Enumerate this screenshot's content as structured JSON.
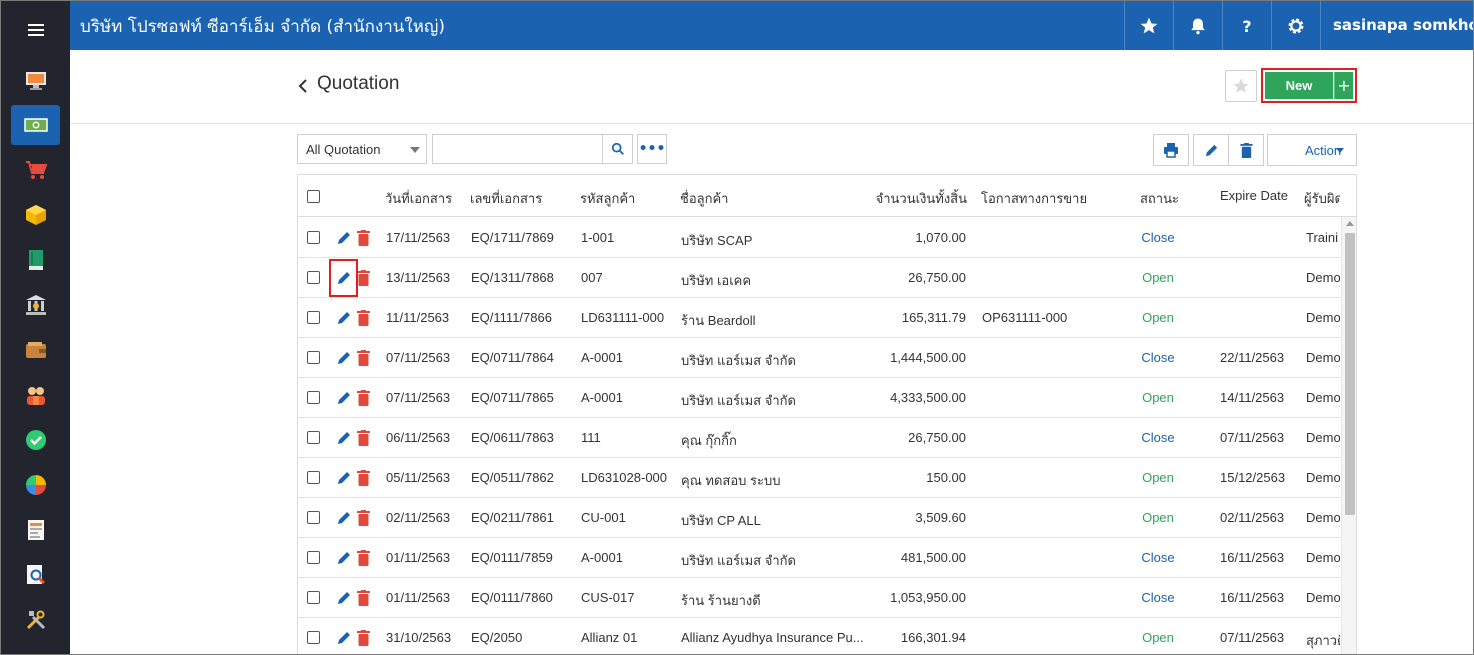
{
  "header": {
    "company": "บริษัท โปรซอฟท์ ซีอาร์เอ็ม จำกัด (สำนักงานใหญ่)",
    "user": "sasinapa somkho..."
  },
  "sidebar": {
    "icons": [
      "dashboard-icon",
      "money-icon",
      "cart-icon",
      "box-icon",
      "book-icon",
      "bank-icon",
      "wallet-icon",
      "people-icon",
      "check-icon",
      "pie-chart-icon",
      "report-icon",
      "search-report-icon",
      "tools-icon"
    ],
    "active_index": 1
  },
  "page": {
    "title": "Quotation",
    "new_label": "New",
    "new_plus": "+",
    "filter_value": "All Quotation",
    "more_label": "•••",
    "action_label": "Action"
  },
  "table": {
    "headers": {
      "date": "วันที่เอกสาร",
      "docno": "เลขที่เอกสาร",
      "custcode": "รหัสลูกค้า",
      "custname": "ชื่อลูกค้า",
      "amount": "จำนวนเงินทั้งสิ้น",
      "opp": "โอกาสทางการขาย",
      "status": "สถานะ",
      "expire": "Expire Date",
      "owner": "ผู้รับผิด"
    },
    "rows": [
      {
        "date": "17/11/2563",
        "docno": "EQ/1711/7869",
        "custcode": "1-001",
        "custname": "บริษัท SCAP",
        "amount": "1,070.00",
        "opp": "",
        "status": "Close",
        "expire": "",
        "owner": "Traini"
      },
      {
        "date": "13/11/2563",
        "docno": "EQ/1311/7868",
        "custcode": "007",
        "custname": "บริษัท เอเคค",
        "amount": "26,750.00",
        "opp": "",
        "status": "Open",
        "expire": "",
        "owner": "Demo"
      },
      {
        "date": "11/11/2563",
        "docno": "EQ/1111/7866",
        "custcode": "LD631111-000",
        "custname": "ร้าน Beardoll",
        "amount": "165,311.79",
        "opp": "OP631111-000",
        "status": "Open",
        "expire": "",
        "owner": "Demo"
      },
      {
        "date": "07/11/2563",
        "docno": "EQ/0711/7864",
        "custcode": "A-0001",
        "custname": "บริษัท แอร์เมส จำกัด",
        "amount": "1,444,500.00",
        "opp": "",
        "status": "Close",
        "expire": "22/11/2563",
        "owner": "Demo"
      },
      {
        "date": "07/11/2563",
        "docno": "EQ/0711/7865",
        "custcode": "A-0001",
        "custname": "บริษัท แอร์เมส จำกัด",
        "amount": "4,333,500.00",
        "opp": "",
        "status": "Open",
        "expire": "14/11/2563",
        "owner": "Demo"
      },
      {
        "date": "06/11/2563",
        "docno": "EQ/0611/7863",
        "custcode": "111",
        "custname": "คุณ กุ๊กกิ๊ก",
        "amount": "26,750.00",
        "opp": "",
        "status": "Close",
        "expire": "07/11/2563",
        "owner": "Demo"
      },
      {
        "date": "05/11/2563",
        "docno": "EQ/0511/7862",
        "custcode": "LD631028-000",
        "custname": "คุณ ทดสอบ ระบบ",
        "amount": "150.00",
        "opp": "",
        "status": "Open",
        "expire": "15/12/2563",
        "owner": "Demo"
      },
      {
        "date": "02/11/2563",
        "docno": "EQ/0211/7861",
        "custcode": "CU-001",
        "custname": "บริษัท CP ALL",
        "amount": "3,509.60",
        "opp": "",
        "status": "Open",
        "expire": "02/11/2563",
        "owner": "Demo"
      },
      {
        "date": "01/11/2563",
        "docno": "EQ/0111/7859",
        "custcode": "A-0001",
        "custname": "บริษัท แอร์เมส จำกัด",
        "amount": "481,500.00",
        "opp": "",
        "status": "Close",
        "expire": "16/11/2563",
        "owner": "Demo"
      },
      {
        "date": "01/11/2563",
        "docno": "EQ/0111/7860",
        "custcode": "CUS-017",
        "custname": "ร้าน ร้านยางดี",
        "amount": "1,053,950.00",
        "opp": "",
        "status": "Close",
        "expire": "16/11/2563",
        "owner": "Demo"
      },
      {
        "date": "31/10/2563",
        "docno": "EQ/2050",
        "custcode": "Allianz 01",
        "custname": "Allianz Ayudhya Insurance Pu...",
        "amount": "166,301.94",
        "opp": "",
        "status": "Open",
        "expire": "07/11/2563",
        "owner": "สุภาวดี"
      }
    ]
  },
  "colors": {
    "brand_blue": "#1b63b1",
    "sidebar_bg": "#22252d",
    "new_green": "#2ea55b",
    "delete_red": "#e0483e",
    "highlight_red": "#e02020"
  }
}
